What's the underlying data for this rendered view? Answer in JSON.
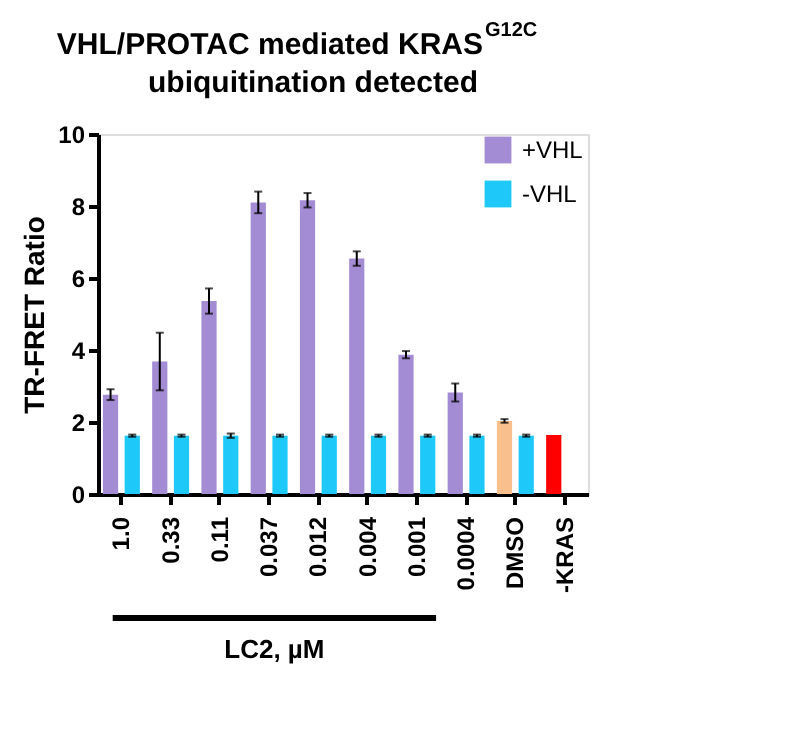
{
  "chart_data": {
    "type": "bar",
    "title": "VHL/PROTAC mediated KRAS$^{G12C}$ ubiquitination detected",
    "ylabel": "TR-FRET Ratio",
    "categories": [
      "1.0",
      "0.33",
      "0.11",
      "0.037",
      "0.012",
      "0.004",
      "0.001",
      "0.0004",
      "DMSO",
      "-KRAS"
    ],
    "series": [
      {
        "name": "+VHL",
        "color": "#a48cd4",
        "colors": [
          "#a48cd4",
          "#a48cd4",
          "#a48cd4",
          "#a48cd4",
          "#a48cd4",
          "#a48cd4",
          "#a48cd4",
          "#a48cd4",
          "#f9bf8c",
          "#ff0000"
        ],
        "values": [
          2.76,
          3.68,
          5.36,
          8.1,
          8.16,
          6.54,
          3.87,
          2.82,
          2.03,
          1.64
        ],
        "errors": [
          0.15,
          0.8,
          0.35,
          0.3,
          0.2,
          0.2,
          0.1,
          0.25,
          0.05,
          null
        ]
      },
      {
        "name": "-VHL",
        "color": "#1ec8f8",
        "values": [
          1.62,
          1.62,
          1.62,
          1.62,
          1.62,
          1.62,
          1.62,
          1.62,
          1.62,
          null
        ],
        "errors": [
          0.03,
          0.03,
          0.06,
          0.03,
          0.03,
          0.03,
          0.03,
          0.03,
          0.03,
          null
        ]
      }
    ],
    "annotations": [
      "LC2, µM"
    ],
    "ylim": [
      0,
      10
    ],
    "yticks": [
      0,
      2,
      4,
      6,
      8,
      10
    ],
    "grid": false,
    "legend": "top right"
  }
}
